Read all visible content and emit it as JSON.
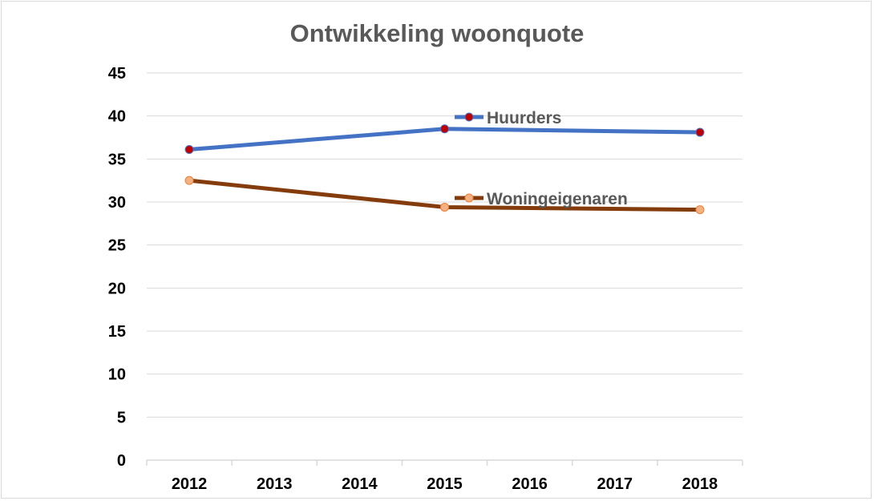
{
  "chart_data": {
    "type": "line",
    "title": "Ontwikkeling woonquote",
    "xlabel": "",
    "ylabel": "",
    "categories": [
      "2012",
      "2013",
      "2014",
      "2015",
      "2016",
      "2017",
      "2018"
    ],
    "ylim": [
      0,
      45
    ],
    "yticks": [
      "0",
      "5",
      "10",
      "15",
      "20",
      "25",
      "30",
      "35",
      "40",
      "45"
    ],
    "grid": true,
    "legend": "inline labels",
    "series": [
      {
        "name": "Huurders",
        "points": [
          {
            "x": "2012",
            "y": 36.1
          },
          {
            "x": "2015",
            "y": 38.5
          },
          {
            "x": "2018",
            "y": 38.1
          }
        ],
        "line_color": "#4472c4",
        "marker_color": "#c00000"
      },
      {
        "name": "Woningeigenaren",
        "points": [
          {
            "x": "2012",
            "y": 32.5
          },
          {
            "x": "2015",
            "y": 29.4
          },
          {
            "x": "2018",
            "y": 29.1
          }
        ],
        "line_color": "#843c0c",
        "marker_color": "#f4b183"
      }
    ]
  }
}
